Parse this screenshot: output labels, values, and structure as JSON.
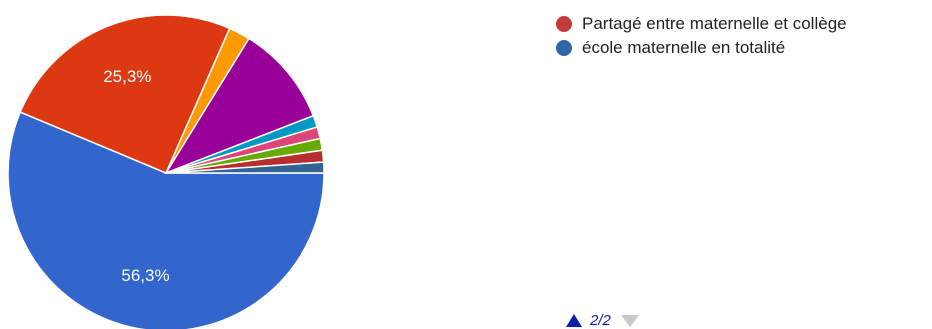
{
  "chart_data": {
    "type": "pie",
    "slices": [
      {
        "label": "école maternelle en totalité",
        "value": 56.3,
        "color": "#3366cc",
        "show_label": true,
        "display": "56,3%"
      },
      {
        "label": "Partagé entre maternelle et collège",
        "value": 25.3,
        "color": "#dc3912",
        "show_label": true,
        "display": "25,3%"
      },
      {
        "label": "",
        "value": 2.2,
        "color": "#ff9900",
        "show_label": false,
        "display": ""
      },
      {
        "label": "",
        "value": 10.3,
        "color": "#990099",
        "show_label": false,
        "display": ""
      },
      {
        "label": "",
        "value": 1.2,
        "color": "#0099c6",
        "show_label": false,
        "display": ""
      },
      {
        "label": "",
        "value": 1.2,
        "color": "#dd4477",
        "show_label": false,
        "display": ""
      },
      {
        "label": "",
        "value": 1.2,
        "color": "#66aa00",
        "show_label": false,
        "display": ""
      },
      {
        "label": "",
        "value": 1.2,
        "color": "#b82e2e",
        "show_label": false,
        "display": ""
      },
      {
        "label": "",
        "value": 1.1,
        "color": "#316395",
        "show_label": false,
        "display": ""
      }
    ]
  },
  "legend": {
    "items": [
      {
        "label": "Partagé entre maternelle et collège",
        "color": "#c53a3a"
      },
      {
        "label": "école maternelle en totalité",
        "color": "#2f66a8"
      }
    ]
  },
  "pager": {
    "text": "2/2"
  }
}
